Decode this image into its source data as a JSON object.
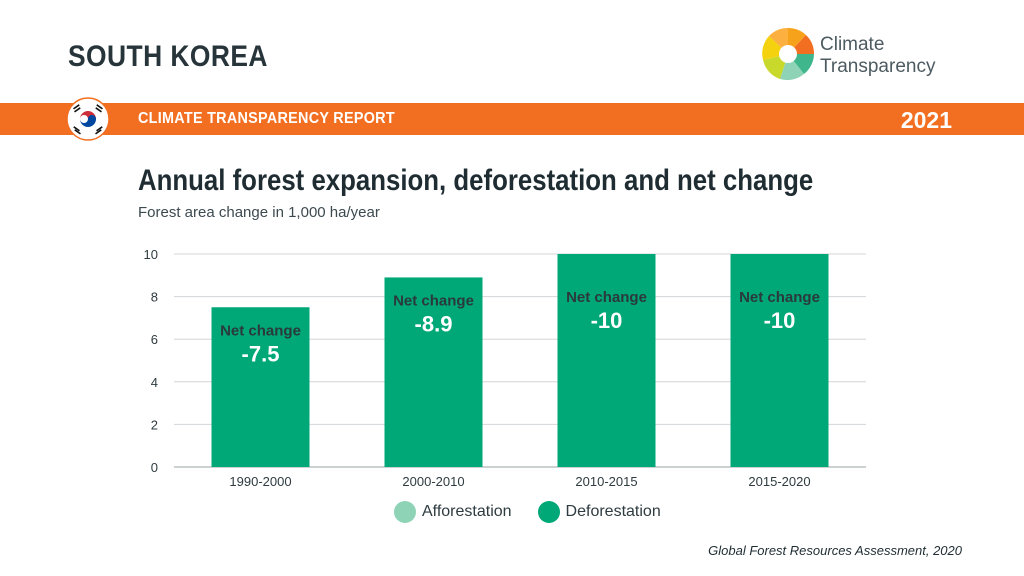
{
  "header": {
    "country": "SOUTH KOREA",
    "logo_line1": "Climate",
    "logo_line2": "Transparency",
    "report_label": "CLIMATE TRANSPARENCY REPORT",
    "year": "2021"
  },
  "colors": {
    "banner": "#f26f21",
    "afforestation": "#8fd3b6",
    "deforestation": "#00a878"
  },
  "chart_data": {
    "type": "bar",
    "title": "Annual forest expansion, deforestation and net change",
    "subtitle": "Forest area change in 1,000 ha/year",
    "categories": [
      "1990-2000",
      "2000-2010",
      "2010-2015",
      "2015-2020"
    ],
    "series": [
      {
        "name": "Afforestation",
        "values": [
          0,
          0,
          0,
          0
        ]
      },
      {
        "name": "Deforestation",
        "values": [
          7.5,
          8.9,
          10,
          10
        ]
      }
    ],
    "net_change_label": "Net change",
    "net_change": [
      "-7.5",
      "-8.9",
      "-10",
      "-10"
    ],
    "ylim": [
      0,
      10
    ],
    "yticks": [
      0,
      2,
      4,
      6,
      8,
      10
    ],
    "grid": true,
    "legend_position": "bottom"
  },
  "source": "Global Forest Resources Assessment, 2020"
}
